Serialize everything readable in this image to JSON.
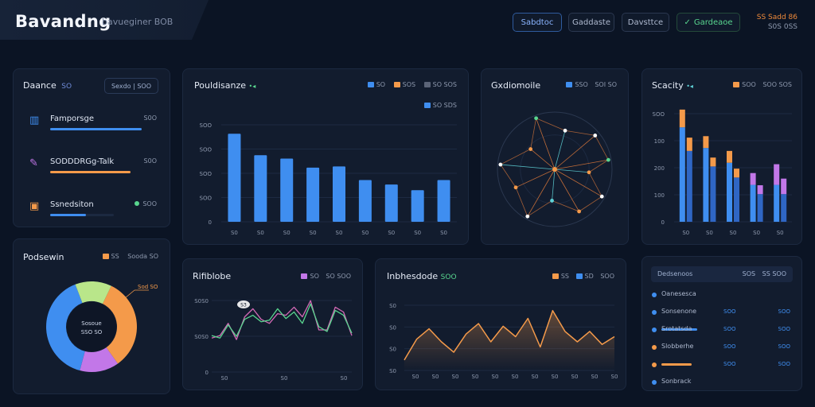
{
  "header": {
    "brand": "Bavandng",
    "subtitle": "bavueginer BOB",
    "buttons": [
      "Sabdtoc",
      "Gaddaste",
      "Davsttce",
      "Gardeaoe"
    ],
    "status_line1": "SS Sadd 86",
    "status_line2": "S0S 0SS"
  },
  "colors": {
    "background": "#0b1424",
    "card": "#121c2e",
    "blue": "#3f8ef0",
    "orange": "#f49a4a",
    "green": "#59d68f",
    "pink": "#d36ab6",
    "purple": "#c277e8",
    "lime": "#b9e68a",
    "cyan": "#5fd3d8"
  },
  "balance": {
    "title": "Daance",
    "title_badge": "SO",
    "button": "Sexdo | SOO",
    "items": [
      {
        "icon": "bar-chart-icon",
        "label": "Famporsge",
        "value": "S0O",
        "progress": 0.82,
        "color": "#3f8ef0"
      },
      {
        "icon": "pen-icon",
        "label": "SODDDRGg-Talk",
        "value": "S0O",
        "progress": 0.72,
        "color": "#f49a4a"
      },
      {
        "icon": "wallet-icon",
        "label": "Ssnedsiton",
        "value": "SOO",
        "progress": 0.32,
        "color": "#3f8ef0"
      }
    ]
  },
  "portfolio_bars": {
    "title": "Pouldisanze",
    "legend": [
      "SO",
      "SOS",
      "SO SOS"
    ],
    "legend2": "SO SDS"
  },
  "radial": {
    "title": "Gxdiomoile",
    "legend": [
      "SSO",
      "SOI SO"
    ]
  },
  "stacked": {
    "title": "Scacity",
    "legend": [
      "SOO",
      "SOO SOS"
    ]
  },
  "donut": {
    "title": "Podsewin",
    "legend": [
      "SS",
      "Sooda SO"
    ],
    "center_line1": "Sosoue",
    "center_line2": "SSO SO",
    "callout": "Sod SO"
  },
  "line_small": {
    "title": "Rifiblobe",
    "legend": [
      "SO",
      "SO SOO"
    ],
    "marker": "S3"
  },
  "line_large": {
    "title": "Inbhesdode",
    "title_suffix": "SOO",
    "legend": [
      "SS",
      "SD",
      "SOO"
    ]
  },
  "list_panel": {
    "header_label": "Dedsenoos",
    "header_right": [
      "SOS",
      "SS SOO"
    ],
    "rows": [
      {
        "label": "Oanesesca",
        "dot": "#3f8ef0",
        "bar": 0.0,
        "c1": "",
        "c2": ""
      },
      {
        "label": "Sonsenone",
        "dot": "#3f8ef0",
        "bar": 0.0,
        "c1": "SOO",
        "c2": "SOO"
      },
      {
        "label": "Srotatsda",
        "dot": "#3f8ef0",
        "bar": 0.9,
        "c1": "SOO",
        "c2": "SOO"
      },
      {
        "label": "Slobberhe",
        "dot": "#f49a4a",
        "bar": 0.0,
        "c1": "SOO",
        "c2": "SOO"
      },
      {
        "label": "",
        "dot": "#f49a4a",
        "bar": 0.75,
        "c1": "SOO",
        "c2": "SOO"
      },
      {
        "label": "Sonbrack",
        "dot": "#3f8ef0",
        "bar": 0.0,
        "c1": "",
        "c2": ""
      }
    ]
  },
  "chart_data": [
    {
      "type": "bar",
      "title": "Pouldisanze",
      "categories": [
        "S0",
        "S0",
        "S0",
        "S0",
        "S0",
        "S0",
        "S0",
        "S0",
        "S0"
      ],
      "yticks": [
        "SOO",
        "SOO",
        "SOO",
        "SOO",
        "0"
      ],
      "values": [
        390,
        295,
        280,
        240,
        245,
        185,
        165,
        140,
        185
      ],
      "ylim": [
        0,
        500
      ]
    },
    {
      "type": "scatter",
      "title": "Gxdiomoile",
      "points": [
        {
          "angle": 10,
          "r": 0.95,
          "color": "#59d68f"
        },
        {
          "angle": 40,
          "r": 0.92,
          "color": "#ffffff"
        },
        {
          "angle": 75,
          "r": 0.7,
          "color": "#ffffff"
        },
        {
          "angle": 110,
          "r": 0.95,
          "color": "#59d68f"
        },
        {
          "angle": 140,
          "r": 0.55,
          "color": "#f49a4a"
        },
        {
          "angle": 175,
          "r": 0.95,
          "color": "#ffffff"
        },
        {
          "angle": 205,
          "r": 0.75,
          "color": "#f49a4a"
        },
        {
          "angle": 240,
          "r": 0.95,
          "color": "#ffffff"
        },
        {
          "angle": 265,
          "r": 0.55,
          "color": "#5fd3d8"
        },
        {
          "angle": 300,
          "r": 0.85,
          "color": "#f49a4a"
        },
        {
          "angle": 330,
          "r": 0.95,
          "color": "#ffffff"
        },
        {
          "angle": 355,
          "r": 0.6,
          "color": "#f49a4a"
        }
      ]
    },
    {
      "type": "bar",
      "title": "Scacity",
      "categories": [
        "S0",
        "S0",
        "S0",
        "S0",
        "S0"
      ],
      "yticks": [
        "SOO",
        "100",
        "200",
        "100",
        "0"
      ],
      "series": [
        {
          "name": "blue",
          "values": [
            320,
            250,
            200,
            125,
            125
          ]
        },
        {
          "name": "orange",
          "values": [
            60,
            40,
            40,
            0,
            0
          ]
        },
        {
          "name": "purple",
          "values": [
            0,
            0,
            0,
            40,
            70
          ]
        }
      ],
      "ylim": [
        0,
        420
      ]
    },
    {
      "type": "pie",
      "title": "Podsewin",
      "slices": [
        {
          "value": 33,
          "color": "#f49a4a"
        },
        {
          "value": 14,
          "color": "#c277e8"
        },
        {
          "value": 40,
          "color": "#3f8ef0"
        },
        {
          "value": 13,
          "color": "#b9e68a"
        }
      ]
    },
    {
      "type": "line",
      "title": "Rifiblobe",
      "xticks": [
        "S0",
        "S0",
        "S0"
      ],
      "yticks": [
        "S0S0",
        "S0S0",
        "0"
      ],
      "series": [
        {
          "name": "pink",
          "values": [
            42,
            45,
            60,
            40,
            68,
            78,
            65,
            60,
            72,
            70,
            80,
            68,
            88,
            52,
            52,
            80,
            74,
            45
          ]
        },
        {
          "name": "green",
          "values": [
            45,
            42,
            58,
            44,
            65,
            70,
            62,
            64,
            78,
            66,
            74,
            60,
            84,
            56,
            50,
            76,
            70,
            48
          ]
        }
      ],
      "ylim": [
        0,
        100
      ]
    },
    {
      "type": "area",
      "title": "Inbhesdode",
      "xticks": [
        "S0",
        "S0",
        "S0",
        "S0",
        "S0",
        "S0",
        "S0",
        "S0",
        "S0",
        "S0",
        "S0"
      ],
      "yticks": [
        "S0",
        "S0",
        "S0",
        "S0"
      ],
      "values": [
        8,
        24,
        32,
        22,
        14,
        28,
        36,
        22,
        34,
        26,
        40,
        18,
        46,
        30,
        22,
        30,
        20,
        26
      ],
      "ylim": [
        0,
        55
      ]
    }
  ]
}
